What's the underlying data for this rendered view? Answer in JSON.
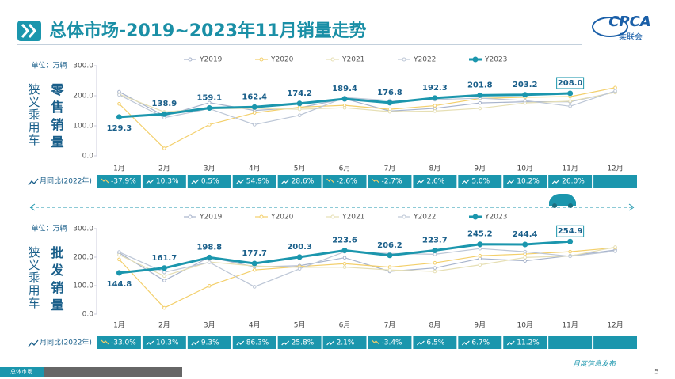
{
  "page_title": "总体市场-2019~2023年11月销量走势",
  "logo": {
    "text": "CPCA",
    "sub": "乘联会"
  },
  "chart_data": [
    {
      "type": "line",
      "unit_label": "单位：万辆",
      "side_label": "狭义乘用车",
      "title": "零售销量",
      "categories": [
        "1月",
        "2月",
        "3月",
        "4月",
        "5月",
        "6月",
        "7月",
        "8月",
        "9月",
        "10月",
        "11月",
        "12月"
      ],
      "ylim": [
        0,
        300
      ],
      "yticks": [
        {
          "value": 0,
          "label": "0.0"
        },
        {
          "value": 100,
          "label": "100.0"
        },
        {
          "value": 200,
          "label": "200.0"
        },
        {
          "value": 300,
          "label": "300.0"
        }
      ],
      "grid": false,
      "series": [
        {
          "name": "Y2019",
          "color": "#a8b4cc",
          "values": [
            213,
            133,
            177,
            151,
            160,
            190,
            149,
            158,
            176,
            180,
            180,
            212
          ]
        },
        {
          "name": "Y2020",
          "color": "#f3cf6a",
          "values": [
            173,
            25,
            104,
            143,
            162,
            168,
            155,
            167,
            191,
            195,
            197,
            227
          ]
        },
        {
          "name": "Y2021",
          "color": "#e6dfb4",
          "values": [
            205,
            146,
            157,
            158,
            155,
            160,
            147,
            149,
            158,
            176,
            182,
            211
          ]
        },
        {
          "name": "Y2022",
          "color": "#bcc6d6",
          "values": [
            203,
            127,
            157,
            104,
            135,
            194,
            184,
            187,
            192,
            184,
            165,
            216
          ]
        },
        {
          "name": "Y2023",
          "color": "#1b96ad",
          "values": [
            129.3,
            138.9,
            159.1,
            162.4,
            174.2,
            189.4,
            176.8,
            192.3,
            201.8,
            203.2,
            208,
            null
          ],
          "value_labels": [
            "129.3",
            "138.9",
            "159.1",
            "162.4",
            "174.2",
            "189.4",
            "176.8",
            "192.3",
            "201.8",
            "203.2",
            "208.0",
            null
          ]
        }
      ],
      "yoy": {
        "label": "月同比(2022年)",
        "values": [
          -37.9,
          10.3,
          0.5,
          54.9,
          28.6,
          -2.6,
          -2.7,
          2.6,
          5.0,
          10.2,
          26.0,
          null
        ],
        "value_labels": [
          "-37.9%",
          "10.3%",
          "0.5%",
          "54.9%",
          "28.6%",
          "-2.6%",
          "-2.7%",
          "2.6%",
          "5.0%",
          "10.2%",
          "26.0%",
          null
        ]
      }
    },
    {
      "type": "line",
      "unit_label": "单位：万辆",
      "side_label": "狭义乘用车",
      "title": "批发销量",
      "categories": [
        "1月",
        "2月",
        "3月",
        "4月",
        "5月",
        "6月",
        "7月",
        "8月",
        "9月",
        "10月",
        "11月",
        "12月"
      ],
      "ylim": [
        0,
        300
      ],
      "yticks": [
        {
          "value": 0,
          "label": "0.0"
        },
        {
          "value": 100,
          "label": "100.0"
        },
        {
          "value": 200,
          "label": "200.0"
        },
        {
          "value": 300,
          "label": "300.0"
        }
      ],
      "grid": false,
      "series": [
        {
          "name": "Y2019",
          "color": "#a8b4cc",
          "values": [
            215,
            118,
            200,
            166,
            170,
            198,
            150,
            162,
            195,
            187,
            205,
            225
          ]
        },
        {
          "name": "Y2020",
          "color": "#f3cf6a",
          "values": [
            192,
            22,
            99,
            155,
            167,
            177,
            165,
            180,
            205,
            211,
            219,
            233
          ]
        },
        {
          "name": "Y2021",
          "color": "#e6dfb4",
          "values": [
            208,
            134,
            183,
            169,
            164,
            165,
            155,
            150,
            173,
            199,
            204,
            235
          ]
        },
        {
          "name": "Y2022",
          "color": "#bcc6d6",
          "values": [
            218,
            147,
            182,
            96,
            159,
            219,
            213,
            210,
            230,
            219,
            203,
            221
          ]
        },
        {
          "name": "Y2023",
          "color": "#1b96ad",
          "values": [
            144.8,
            161.7,
            198.8,
            177.7,
            200.3,
            223.6,
            206.2,
            223.7,
            245.2,
            244.4,
            254.9,
            null
          ],
          "value_labels": [
            "144.8",
            "161.7",
            "198.8",
            "177.7",
            "200.3",
            "223.6",
            "206.2",
            "223.7",
            "245.2",
            "244.4",
            "254.9",
            null
          ]
        }
      ],
      "yoy": {
        "label": "月同比(2022年)",
        "values": [
          -33.0,
          10.3,
          9.3,
          86.3,
          25.8,
          2.1,
          -3.4,
          6.5,
          6.7,
          11.2,
          null,
          null
        ],
        "value_labels": [
          "-33.0%",
          "10.3%",
          "9.3%",
          "86.3%",
          "25.8%",
          "2.1%",
          "-3.4%",
          "6.5%",
          "6.7%",
          "11.2%",
          null,
          null
        ]
      }
    }
  ],
  "footer": {
    "tabs": [
      "总体市场"
    ],
    "note": "月度信息发布",
    "page": 5
  }
}
